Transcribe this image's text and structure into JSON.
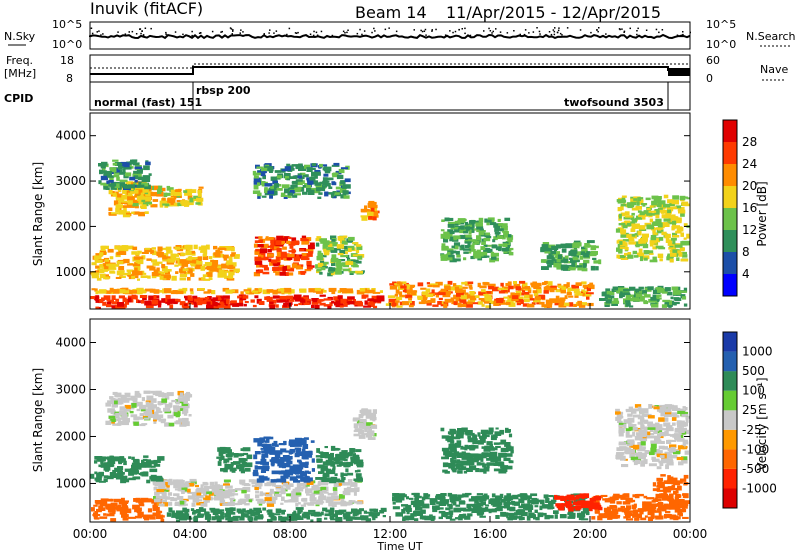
{
  "header": {
    "station": "Inuvik (fitACF)",
    "beam": "Beam 14",
    "date_range": "11/Apr/2015 - 12/Apr/2015"
  },
  "nsky_panel": {
    "left_label": "N.Sky",
    "left_ticks": [
      "10^5",
      "10^0"
    ],
    "right_label": "N.Search",
    "right_ticks": [
      "10^5",
      "10^0"
    ]
  },
  "freq_panel": {
    "left_label_1": "Freq.",
    "left_label_2": "[MHz]",
    "left_ticks": [
      "18",
      "8"
    ],
    "right_label": "Nave",
    "right_ticks": [
      "60",
      "0"
    ]
  },
  "cpid_panel": {
    "label": "CPID",
    "modes": [
      "normal (fast) 151",
      "rbsp 200",
      "twofsound 3503"
    ]
  },
  "power_panel": {
    "ylabel": "Slant Range [km]",
    "yticks": [
      "4000",
      "3000",
      "2000",
      "1000"
    ],
    "colorbar_label": "Power [dB]",
    "colorbar_ticks": [
      "28",
      "24",
      "20",
      "16",
      "12",
      "8",
      "4"
    ],
    "colors": [
      "#0000ff",
      "#1c4fa8",
      "#2f8f5a",
      "#6cc24a",
      "#f2d21a",
      "#ff8c00",
      "#ff3a00",
      "#e00000"
    ]
  },
  "velocity_panel": {
    "ylabel": "Slant Range [km]",
    "yticks": [
      "4000",
      "3000",
      "2000",
      "1000"
    ],
    "colorbar_label": "Velocity [m s⁻¹]",
    "colorbar_ticks": [
      "1000",
      "500",
      "100",
      "25",
      "-25",
      "-100",
      "-500",
      "-1000"
    ],
    "colors": [
      "#1a3aa8",
      "#2460b0",
      "#2e8b57",
      "#66cc33",
      "#c8c8c8",
      "#ff9900",
      "#ff6600",
      "#ff2200",
      "#dd0000"
    ]
  },
  "x_axis": {
    "ticks": [
      "00:00",
      "04:00",
      "08:00",
      "12:00",
      "16:00",
      "20:00",
      "00:00"
    ],
    "label": "Time UT"
  },
  "chart_data": {
    "type": "heatmap",
    "x_range_hours": [
      0,
      24
    ],
    "y_range_km": [
      180,
      4500
    ],
    "cpid_segments": [
      {
        "start_h": 0,
        "end_h": 4.1,
        "label": "normal (fast) 151"
      },
      {
        "start_h": 4.1,
        "end_h": 23.1,
        "label": "rbsp 200"
      },
      {
        "start_h": 23.1,
        "end_h": 24,
        "label": "twofsound 3503"
      }
    ],
    "power_clusters": [
      {
        "t0": 0,
        "t1": 11.8,
        "r0": 180,
        "r1": 500,
        "db": 28
      },
      {
        "t0": 0,
        "t1": 11.8,
        "r0": 500,
        "r1": 650,
        "db": 20
      },
      {
        "t0": 11.8,
        "t1": 20.3,
        "r0": 200,
        "r1": 800,
        "db": 22
      },
      {
        "t0": 20.3,
        "t1": 24,
        "r0": 200,
        "r1": 700,
        "db": 12
      },
      {
        "t0": 0,
        "t1": 6,
        "r0": 800,
        "r1": 1600,
        "db": 20
      },
      {
        "t0": 6.5,
        "t1": 9,
        "r0": 900,
        "r1": 1800,
        "db": 26
      },
      {
        "t0": 9,
        "t1": 11,
        "r0": 900,
        "r1": 1800,
        "db": 14
      },
      {
        "t0": 0.7,
        "t1": 2.5,
        "r0": 2200,
        "r1": 3000,
        "db": 20
      },
      {
        "t0": 1.5,
        "t1": 4.6,
        "r0": 2400,
        "r1": 2900,
        "db": 18
      },
      {
        "t0": 10.8,
        "t1": 11.6,
        "r0": 2100,
        "r1": 2600,
        "db": 22
      },
      {
        "t0": 14,
        "t1": 17,
        "r0": 1200,
        "r1": 2200,
        "db": 12
      },
      {
        "t0": 18,
        "t1": 20.5,
        "r0": 1000,
        "r1": 1700,
        "db": 12
      },
      {
        "t0": 21,
        "t1": 24,
        "r0": 1200,
        "r1": 2700,
        "db": 16
      },
      {
        "t0": 0.3,
        "t1": 2.5,
        "r0": 2800,
        "r1": 3500,
        "db": 10
      },
      {
        "t0": 6.5,
        "t1": 10.5,
        "r0": 2600,
        "r1": 3400,
        "db": 10
      }
    ],
    "velocity_clusters": [
      {
        "t0": 0,
        "t1": 3,
        "r0": 180,
        "r1": 700,
        "v": -100
      },
      {
        "t0": 3,
        "t1": 12,
        "r0": 180,
        "r1": 500,
        "v": 100
      },
      {
        "t0": 12,
        "t1": 20,
        "r0": 200,
        "r1": 800,
        "v": 100
      },
      {
        "t0": 20,
        "t1": 24,
        "r0": 200,
        "r1": 800,
        "v": -100
      },
      {
        "t0": 2.5,
        "t1": 11,
        "r0": 500,
        "r1": 1100,
        "v": 0
      },
      {
        "t0": 0,
        "t1": 3,
        "r0": 1000,
        "r1": 1600,
        "v": 100
      },
      {
        "t0": 0.6,
        "t1": 4.1,
        "r0": 2200,
        "r1": 3000,
        "v": 0
      },
      {
        "t0": 6.5,
        "t1": 9,
        "r0": 1000,
        "r1": 2000,
        "v": 500
      },
      {
        "t0": 5,
        "t1": 6.5,
        "r0": 1200,
        "r1": 1800,
        "v": 100
      },
      {
        "t0": 9,
        "t1": 11,
        "r0": 1000,
        "r1": 1800,
        "v": 100
      },
      {
        "t0": 10.5,
        "t1": 11.5,
        "r0": 1900,
        "r1": 2600,
        "v": 0
      },
      {
        "t0": 14,
        "t1": 17,
        "r0": 1200,
        "r1": 2200,
        "v": 100
      },
      {
        "t0": 18.5,
        "t1": 20.5,
        "r0": 400,
        "r1": 800,
        "v": -500
      },
      {
        "t0": 21,
        "t1": 24,
        "r0": 1300,
        "r1": 2700,
        "v": 0
      },
      {
        "t0": 22.5,
        "t1": 24,
        "r0": 400,
        "r1": 1200,
        "v": -100
      }
    ]
  }
}
